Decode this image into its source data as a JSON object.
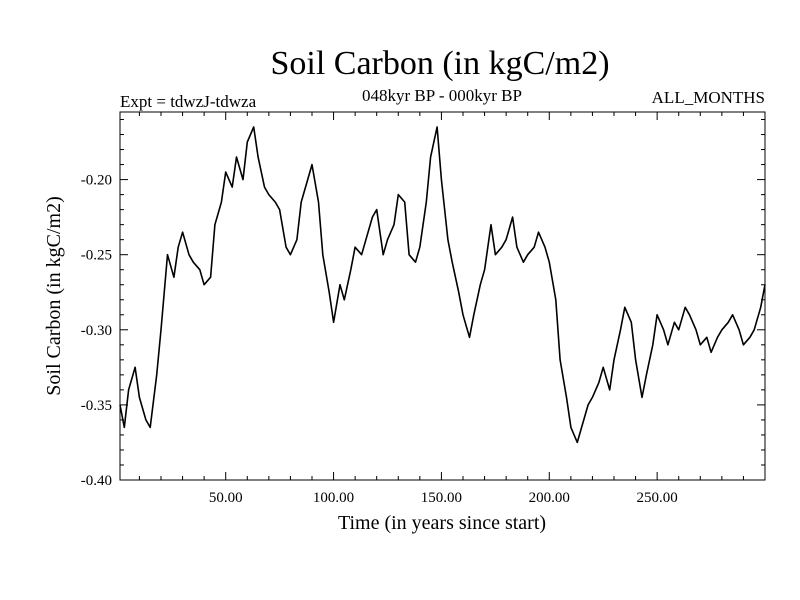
{
  "chart_data": {
    "type": "line",
    "title": "Soil Carbon (in kgC/m2)",
    "subtitle": "048kyr BP - 000kyr BP",
    "left_header": "Expt = tdwzJ-tdwza",
    "right_header": "ALL_MONTHS",
    "xlabel": "Time (in years since start)",
    "ylabel": "Soil Carbon (in kgC/m2)",
    "xlim": [
      1,
      300
    ],
    "ylim": [
      -0.4,
      -0.155
    ],
    "x_ticks": [
      50,
      100,
      150,
      200,
      250
    ],
    "x_tick_labels": [
      "50.00",
      "100.00",
      "150.00",
      "200.00",
      "250.00"
    ],
    "y_ticks": [
      -0.4,
      -0.35,
      -0.3,
      -0.25,
      -0.2
    ],
    "y_tick_labels": [
      "-0.40",
      "-0.35",
      "-0.30",
      "-0.25",
      "-0.20"
    ],
    "grid": false,
    "line_color": "#000000",
    "series": [
      {
        "x": [
          1,
          3,
          5,
          8,
          10,
          13,
          15,
          18,
          20,
          23,
          26,
          28,
          30,
          33,
          35,
          38,
          40,
          43,
          45,
          48,
          50,
          53,
          55,
          58,
          60,
          63,
          65,
          68,
          70,
          73,
          75,
          78,
          80,
          83,
          85,
          88,
          90,
          93,
          95,
          98,
          100,
          103,
          105,
          108,
          110,
          113,
          115,
          118,
          120,
          123,
          125,
          128,
          130,
          133,
          135,
          138,
          140,
          143,
          145,
          148,
          150,
          153,
          155,
          158,
          160,
          163,
          165,
          168,
          170,
          173,
          175,
          178,
          180,
          183,
          185,
          188,
          190,
          193,
          195,
          198,
          200,
          203,
          205,
          208,
          210,
          213,
          215,
          218,
          220,
          223,
          225,
          228,
          230,
          233,
          235,
          238,
          240,
          243,
          245,
          248,
          250,
          253,
          255,
          258,
          260,
          263,
          265,
          268,
          270,
          273,
          275,
          278,
          280,
          283,
          285,
          288,
          290,
          293,
          295,
          298,
          300
        ],
        "y": [
          -0.35,
          -0.365,
          -0.34,
          -0.325,
          -0.345,
          -0.36,
          -0.365,
          -0.33,
          -0.3,
          -0.25,
          -0.265,
          -0.245,
          -0.235,
          -0.25,
          -0.255,
          -0.26,
          -0.27,
          -0.265,
          -0.23,
          -0.215,
          -0.195,
          -0.205,
          -0.185,
          -0.2,
          -0.175,
          -0.165,
          -0.185,
          -0.205,
          -0.21,
          -0.215,
          -0.22,
          -0.245,
          -0.25,
          -0.24,
          -0.215,
          -0.2,
          -0.19,
          -0.215,
          -0.25,
          -0.275,
          -0.295,
          -0.27,
          -0.28,
          -0.26,
          -0.245,
          -0.25,
          -0.24,
          -0.225,
          -0.22,
          -0.25,
          -0.24,
          -0.23,
          -0.21,
          -0.215,
          -0.25,
          -0.255,
          -0.245,
          -0.215,
          -0.185,
          -0.165,
          -0.2,
          -0.24,
          -0.255,
          -0.275,
          -0.29,
          -0.305,
          -0.29,
          -0.27,
          -0.26,
          -0.23,
          -0.25,
          -0.245,
          -0.24,
          -0.225,
          -0.245,
          -0.255,
          -0.25,
          -0.245,
          -0.235,
          -0.245,
          -0.255,
          -0.28,
          -0.32,
          -0.345,
          -0.365,
          -0.375,
          -0.365,
          -0.35,
          -0.345,
          -0.335,
          -0.325,
          -0.34,
          -0.32,
          -0.3,
          -0.285,
          -0.295,
          -0.32,
          -0.345,
          -0.33,
          -0.31,
          -0.29,
          -0.3,
          -0.31,
          -0.295,
          -0.3,
          -0.285,
          -0.29,
          -0.3,
          -0.31,
          -0.305,
          -0.315,
          -0.305,
          -0.3,
          -0.295,
          -0.29,
          -0.3,
          -0.31,
          -0.305,
          -0.3,
          -0.285,
          -0.27
        ]
      }
    ]
  }
}
